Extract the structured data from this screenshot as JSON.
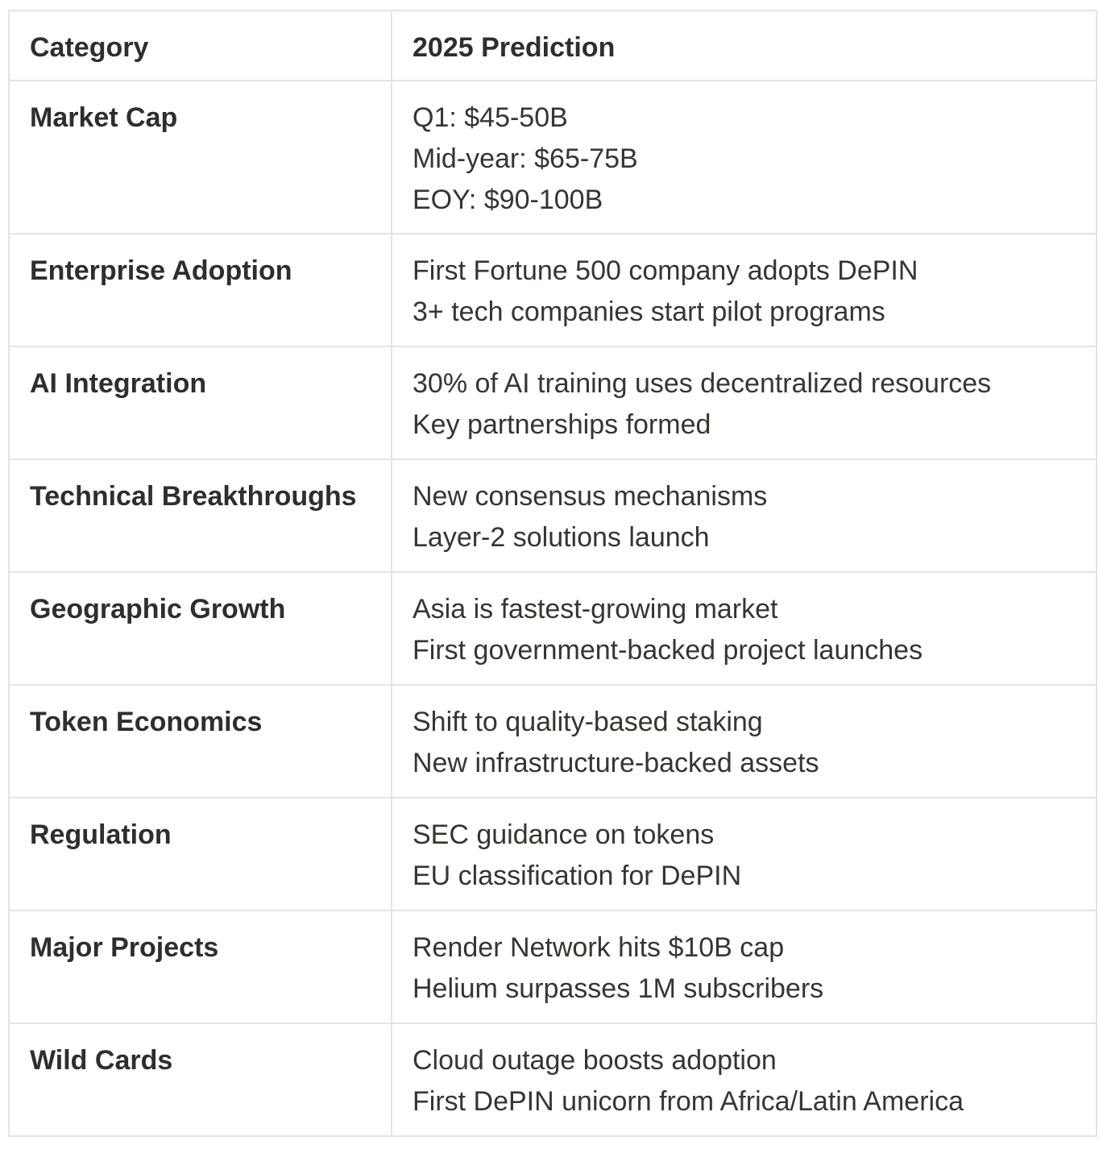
{
  "table": {
    "headers": [
      "Category",
      "2025 Prediction"
    ],
    "rows": [
      {
        "category": "Market Cap",
        "lines": [
          "Q1: $45-50B",
          "Mid-year: $65-75B",
          "EOY: $90-100B"
        ]
      },
      {
        "category": "Enterprise Adoption",
        "lines": [
          "First Fortune 500 company adopts DePIN",
          "3+ tech companies start pilot programs"
        ]
      },
      {
        "category": "AI Integration",
        "lines": [
          "30% of AI training uses decentralized resources",
          "Key partnerships formed"
        ]
      },
      {
        "category": "Technical Breakthroughs",
        "lines": [
          "New consensus mechanisms",
          "Layer-2 solutions launch"
        ]
      },
      {
        "category": "Geographic Growth",
        "lines": [
          "Asia is fastest-growing market",
          "First government-backed project launches"
        ]
      },
      {
        "category": "Token Economics",
        "lines": [
          "Shift to quality-based staking",
          "New infrastructure-backed assets"
        ]
      },
      {
        "category": "Regulation",
        "lines": [
          "SEC guidance on tokens",
          "EU classification for DePIN"
        ]
      },
      {
        "category": "Major Projects",
        "lines": [
          "Render Network hits $10B cap",
          "Helium surpasses 1M subscribers"
        ]
      },
      {
        "category": "Wild Cards",
        "lines": [
          "Cloud outage boosts adoption",
          "First DePIN unicorn from Africa/Latin America"
        ]
      }
    ]
  }
}
